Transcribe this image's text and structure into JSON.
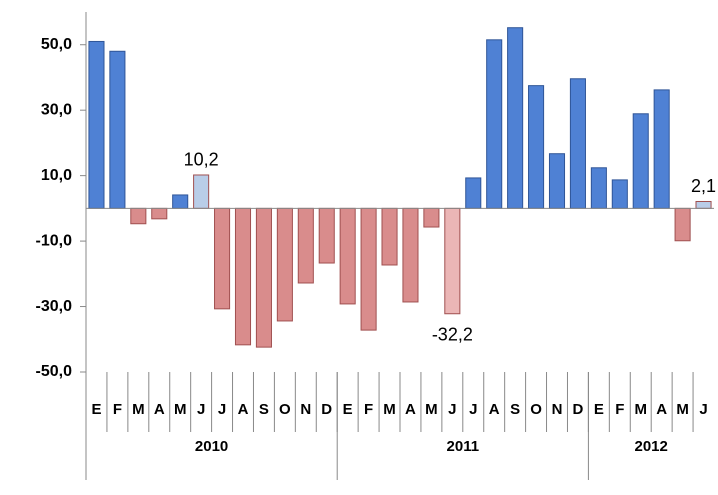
{
  "chart_data": {
    "type": "bar",
    "categories": [
      "E",
      "F",
      "M",
      "A",
      "M",
      "J",
      "J",
      "A",
      "S",
      "O",
      "N",
      "D",
      "E",
      "F",
      "M",
      "A",
      "M",
      "J",
      "J",
      "A",
      "S",
      "O",
      "N",
      "D",
      "E",
      "F",
      "M",
      "A",
      "M",
      "J"
    ],
    "x_groups": [
      {
        "label": "2010",
        "count": 12
      },
      {
        "label": "2011",
        "count": 12
      },
      {
        "label": "2012",
        "count": 6
      }
    ],
    "values": [
      51,
      48,
      -4.7,
      -3.2,
      4.1,
      10.2,
      -30.7,
      -41.7,
      -42.4,
      -34.4,
      -22.8,
      -16.7,
      -29.2,
      -37.2,
      -17.3,
      -28.6,
      -5.7,
      -32.2,
      9.3,
      51.5,
      55.2,
      37.5,
      16.7,
      39.6,
      12.4,
      8.7,
      28.9,
      36.2,
      -9.9,
      2.1
    ],
    "value_labels": [
      null,
      null,
      null,
      null,
      null,
      "10,2",
      null,
      null,
      null,
      null,
      null,
      null,
      null,
      null,
      null,
      null,
      null,
      "-32,2",
      null,
      null,
      null,
      null,
      null,
      null,
      null,
      null,
      null,
      null,
      null,
      "2,1"
    ],
    "colors": [
      "#4f81d4",
      "#4f81d4",
      "#d98c8c",
      "#d98c8c",
      "#4f81d4",
      "#b9cde8",
      "#d98c8c",
      "#d98c8c",
      "#d98c8c",
      "#d98c8c",
      "#d98c8c",
      "#d98c8c",
      "#d98c8c",
      "#d98c8c",
      "#d98c8c",
      "#d98c8c",
      "#d98c8c",
      "#ebb6b6",
      "#4f81d4",
      "#4f81d4",
      "#4f81d4",
      "#4f81d4",
      "#4f81d4",
      "#4f81d4",
      "#4f81d4",
      "#4f81d4",
      "#4f81d4",
      "#4f81d4",
      "#d98c8c",
      "#b9cde8"
    ],
    "ylim": [
      -50,
      60
    ],
    "yticks": [
      {
        "value": -50,
        "label": "-50,0"
      },
      {
        "value": -30,
        "label": "-30,0"
      },
      {
        "value": -10,
        "label": "-10,0"
      },
      {
        "value": 10,
        "label": "10,0"
      },
      {
        "value": 30,
        "label": "30,0"
      },
      {
        "value": 50,
        "label": "50,0"
      }
    ],
    "grid": false
  }
}
